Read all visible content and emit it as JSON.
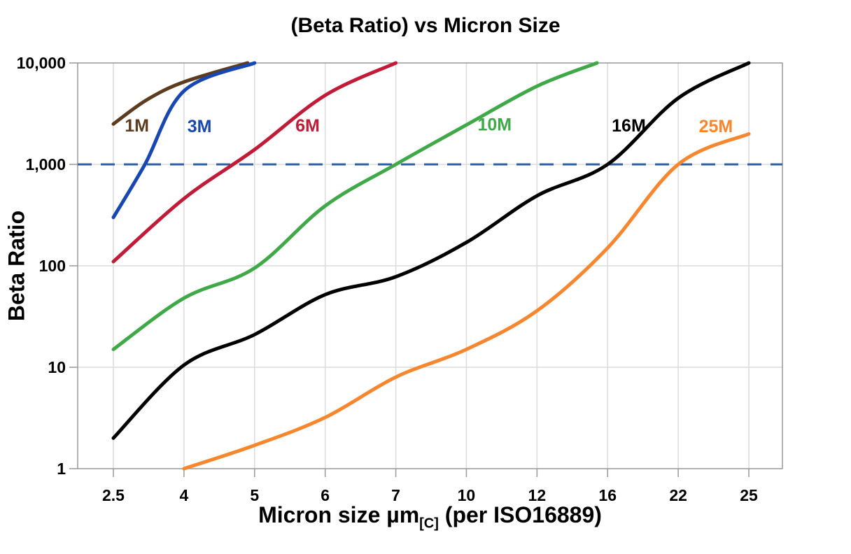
{
  "chart_data": {
    "type": "line",
    "title": "(Beta Ratio) vs Micron Size",
    "ylabel": "Beta Ratio",
    "xlabel_pre": "Micron size µm",
    "xlabel_sub": "[C]",
    "xlabel_post": " (per ISO16889)",
    "x_axis": {
      "categories": [
        2.5,
        4,
        5,
        6,
        7,
        10,
        12,
        16,
        22,
        25
      ],
      "tick_labels": [
        "2.5",
        "4",
        "5",
        "6",
        "7",
        "10",
        "12",
        "16",
        "22",
        "25"
      ],
      "spacing": "equal"
    },
    "y_axis": {
      "scale": "log",
      "ylim": [
        1,
        10000
      ],
      "ticks": [
        {
          "value": 1,
          "label": "1"
        },
        {
          "value": 10,
          "label": "10"
        },
        {
          "value": 100,
          "label": "100"
        },
        {
          "value": 1000,
          "label": "1,000"
        },
        {
          "value": 10000,
          "label": "10,000"
        }
      ]
    },
    "grid": true,
    "legend": "inline-curve-labels",
    "reference_line": {
      "value": 1000,
      "style": "dashed",
      "color": "#2E5FA5"
    },
    "series": [
      {
        "name": "1M",
        "color": "#5C3B1E",
        "points": [
          [
            2.5,
            2500
          ],
          [
            3.2,
            4300
          ],
          [
            4,
            6500
          ],
          [
            4.9,
            10000
          ]
        ]
      },
      {
        "name": "3M",
        "color": "#1747B0",
        "points": [
          [
            2.5,
            300
          ],
          [
            3.17,
            1000
          ],
          [
            4,
            5300
          ],
          [
            5,
            10000
          ]
        ]
      },
      {
        "name": "6M",
        "color": "#C11B38",
        "points": [
          [
            2.5,
            110
          ],
          [
            4,
            460
          ],
          [
            5,
            1400
          ],
          [
            6,
            4800
          ],
          [
            7,
            10000
          ]
        ]
      },
      {
        "name": "10M",
        "color": "#3FA948",
        "points": [
          [
            2.5,
            15
          ],
          [
            4,
            48
          ],
          [
            5,
            95
          ],
          [
            6,
            390
          ],
          [
            7,
            1000
          ],
          [
            10,
            2450
          ],
          [
            12,
            5900
          ],
          [
            15.4,
            10000
          ]
        ]
      },
      {
        "name": "16M",
        "color": "#000000",
        "points": [
          [
            2.5,
            2
          ],
          [
            4,
            10.5
          ],
          [
            5,
            21
          ],
          [
            6,
            52
          ],
          [
            7,
            78
          ],
          [
            10,
            170
          ],
          [
            12,
            490
          ],
          [
            16,
            1000
          ],
          [
            22,
            4500
          ],
          [
            25,
            10000
          ]
        ]
      },
      {
        "name": "25M",
        "color": "#F6872E",
        "points": [
          [
            4,
            1
          ],
          [
            5,
            1.7
          ],
          [
            6,
            3.2
          ],
          [
            7,
            8
          ],
          [
            10,
            15
          ],
          [
            12,
            36
          ],
          [
            16,
            150
          ],
          [
            22,
            1000
          ],
          [
            25,
            2000
          ]
        ]
      }
    ],
    "series_labels": [
      {
        "text": "1M",
        "series": "1M",
        "x": 3.0,
        "y": 2400
      },
      {
        "text": "3M",
        "series": "3M",
        "x": 4.22,
        "y": 2350
      },
      {
        "text": "6M",
        "series": "6M",
        "x": 5.75,
        "y": 2400
      },
      {
        "text": "10M",
        "series": "10M",
        "x": 10.8,
        "y": 2450
      },
      {
        "text": "16M",
        "series": "16M",
        "x": 17.8,
        "y": 2400
      },
      {
        "text": "25M",
        "series": "25M",
        "x": 23.6,
        "y": 2350
      }
    ],
    "colors": {
      "grid": "#DCDCDC",
      "axis_border": "#999999",
      "tick_text": "#000000"
    }
  }
}
